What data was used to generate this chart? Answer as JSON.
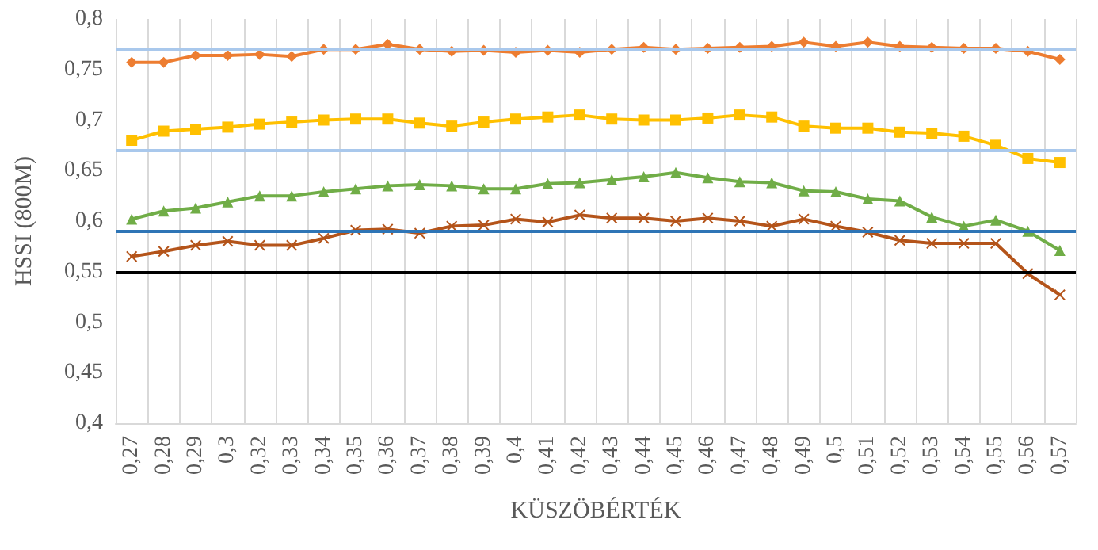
{
  "chart_data": {
    "type": "line",
    "xlabel": "KÜSZÖBÉRTÉK",
    "ylabel": "HSSI (800M)",
    "categories": [
      "0,27",
      "0,28",
      "0,29",
      "0,3",
      "0,32",
      "0,33",
      "0,34",
      "0,35",
      "0,36",
      "0,37",
      "0,38",
      "0,39",
      "0,4",
      "0,41",
      "0,42",
      "0,43",
      "0,44",
      "0,45",
      "0,46",
      "0,47",
      "0,48",
      "0,49",
      "0,5",
      "0,51",
      "0,52",
      "0,53",
      "0,54",
      "0,55",
      "0,56",
      "0,57"
    ],
    "series": [
      {
        "color": "#ed7d31",
        "marker": "diamond",
        "values": [
          0.757,
          0.757,
          0.764,
          0.764,
          0.765,
          0.763,
          0.77,
          0.77,
          0.775,
          0.77,
          0.768,
          0.769,
          0.767,
          0.769,
          0.767,
          0.77,
          0.772,
          0.77,
          0.771,
          0.772,
          0.773,
          0.777,
          0.773,
          0.777,
          0.773,
          0.772,
          0.771,
          0.771,
          0.768,
          0.76
        ]
      },
      {
        "color": "#ffc000",
        "marker": "square",
        "values": [
          0.68,
          0.689,
          0.691,
          0.693,
          0.696,
          0.698,
          0.7,
          0.701,
          0.701,
          0.697,
          0.694,
          0.698,
          0.701,
          0.703,
          0.705,
          0.701,
          0.7,
          0.7,
          0.702,
          0.705,
          0.703,
          0.694,
          0.692,
          0.692,
          0.688,
          0.687,
          0.684,
          0.675,
          0.662,
          0.658
        ]
      },
      {
        "color": "#70ad47",
        "marker": "triangle",
        "values": [
          0.602,
          0.61,
          0.613,
          0.619,
          0.625,
          0.625,
          0.629,
          0.632,
          0.635,
          0.636,
          0.635,
          0.632,
          0.632,
          0.637,
          0.638,
          0.641,
          0.644,
          0.648,
          0.643,
          0.639,
          0.638,
          0.63,
          0.629,
          0.622,
          0.62,
          0.604,
          0.595,
          0.601,
          0.59,
          0.571
        ]
      },
      {
        "color": "#b4541a",
        "marker": "cross",
        "values": [
          0.565,
          0.57,
          0.576,
          0.58,
          0.576,
          0.576,
          0.583,
          0.591,
          0.592,
          0.588,
          0.595,
          0.596,
          0.602,
          0.599,
          0.606,
          0.603,
          0.603,
          0.6,
          0.603,
          0.6,
          0.595,
          0.602,
          0.595,
          0.589,
          0.581,
          0.578,
          0.578,
          0.578,
          0.548,
          0.527
        ]
      }
    ],
    "ref_lines": [
      {
        "axis": "y",
        "value": 0.772,
        "color": "#a9c8ec"
      },
      {
        "axis": "y",
        "value": 0.668,
        "color": "#a9c8ec"
      },
      {
        "axis": "y",
        "value": 0.588,
        "color": "#2e75b6"
      },
      {
        "axis": "y",
        "value": 0.548,
        "color": "#000000"
      }
    ],
    "ylim": [
      0.4,
      0.8
    ],
    "yticks": [
      {
        "value": 0.4,
        "label": "0,4"
      },
      {
        "value": 0.45,
        "label": "0,45"
      },
      {
        "value": 0.5,
        "label": "0,5"
      },
      {
        "value": 0.55,
        "label": "0,55"
      },
      {
        "value": 0.6,
        "label": "0,6"
      },
      {
        "value": 0.65,
        "label": "0,65"
      },
      {
        "value": 0.7,
        "label": "0,7"
      },
      {
        "value": 0.75,
        "label": "0,75"
      },
      {
        "value": 0.8,
        "label": "0,8"
      }
    ],
    "grid": "x"
  }
}
